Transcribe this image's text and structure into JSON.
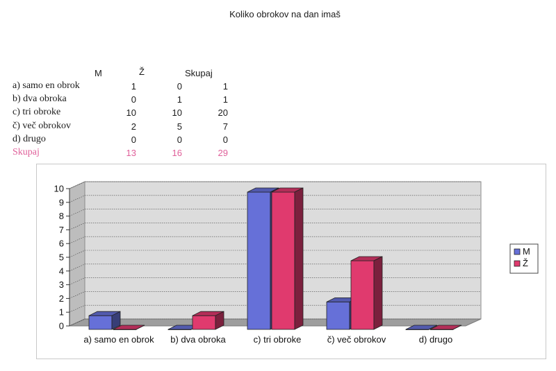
{
  "page": {
    "title": "Koliko obrokov na dan imaš"
  },
  "table": {
    "headers": [
      "M",
      "Ž",
      "Skupaj"
    ],
    "rows": [
      {
        "label": "a) samo en obrok",
        "m": "1",
        "z": "0",
        "total": "1"
      },
      {
        "label": "b) dva obroka",
        "m": "0",
        "z": "1",
        "total": "1"
      },
      {
        "label": "c) tri obroke",
        "m": "10",
        "z": "10",
        "total": "20"
      },
      {
        "label": "č) več obrokov",
        "m": "2",
        "z": "5",
        "total": "7"
      },
      {
        "label": "d) drugo",
        "m": "0",
        "z": "0",
        "total": "0"
      }
    ],
    "total_row": {
      "label": "Skupaj",
      "m": "13",
      "z": "16",
      "total": "29"
    }
  },
  "chart_data": {
    "type": "bar",
    "categories": [
      "a) samo en obrok",
      "b) dva obroka",
      "c) tri obroke",
      "č) več obrokov",
      "d) drugo"
    ],
    "series": [
      {
        "name": "M",
        "values": [
          1,
          0,
          10,
          2,
          0
        ],
        "color": "#6670d8"
      },
      {
        "name": "Ž",
        "values": [
          0,
          1,
          10,
          5,
          0
        ],
        "color": "#e03a6e"
      }
    ],
    "ylim": [
      0,
      10
    ],
    "yticks": [
      0,
      1,
      2,
      3,
      4,
      5,
      6,
      7,
      8,
      9,
      10
    ],
    "grid": true,
    "legend": "right",
    "style": "3d"
  }
}
